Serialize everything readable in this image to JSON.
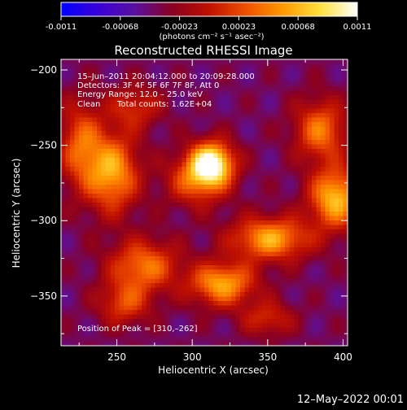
{
  "colorbar": {
    "tick_labels": [
      "-0.0011",
      "-0.00068",
      "-0.00023",
      "0.00023",
      "0.00068",
      "0.0011"
    ],
    "units": "(photons cm⁻² s⁻¹ asec⁻²)",
    "stops": [
      "#0000ff",
      "#3a00d8",
      "#5a10a0",
      "#8a0020",
      "#c01000",
      "#f05000",
      "#ff9a00",
      "#ffe040",
      "#ffffff"
    ]
  },
  "annotations": {
    "line1": "15–Jun–2011 20:04:12.000 to 20:09:28.000",
    "line2": "Detectors: 3F 4F 5F 6F 7F 8F, Att 0",
    "line3": "Energy Range: 12.0 – 25.0 keV",
    "line4_a": "Clean",
    "line4_b": "Total counts: 1.62E+04",
    "peak": "Position of Peak = [310,–262]"
  },
  "footer": {
    "timestamp": "12–May–2022 00:01"
  },
  "chart_data": {
    "type": "heatmap",
    "title": "Reconstructed RHESSI Image",
    "xlabel": "Heliocentric X (arcsec)",
    "ylabel": "Heliocentric Y (arcsec)",
    "xlim": [
      213,
      403
    ],
    "ylim": [
      -383,
      -193
    ],
    "xticks": [
      250,
      300,
      350,
      400
    ],
    "xtick_labels": [
      "250",
      "300",
      "350",
      "400"
    ],
    "yticks": [
      -200,
      -250,
      -300,
      -350
    ],
    "ytick_labels": [
      "−200",
      "−250",
      "−300",
      "−350"
    ],
    "background_level": -0.0004,
    "peak_position": [
      310,
      -262
    ],
    "sources": [
      {
        "x": 313,
        "y": -262,
        "amp": 0.0014,
        "sx": 10,
        "sy": 10
      },
      {
        "x": 303,
        "y": -273,
        "amp": 0.0007,
        "sx": 14,
        "sy": 12
      },
      {
        "x": 247,
        "y": -268,
        "amp": 0.001,
        "sx": 12,
        "sy": 18
      },
      {
        "x": 226,
        "y": -250,
        "amp": 0.0007,
        "sx": 10,
        "sy": 20
      },
      {
        "x": 262,
        "y": -225,
        "amp": 0.0005,
        "sx": 12,
        "sy": 10
      },
      {
        "x": 395,
        "y": -285,
        "amp": 0.0011,
        "sx": 12,
        "sy": 14
      },
      {
        "x": 385,
        "y": -240,
        "amp": 0.0008,
        "sx": 12,
        "sy": 14
      },
      {
        "x": 352,
        "y": -312,
        "amp": 0.001,
        "sx": 18,
        "sy": 10
      },
      {
        "x": 320,
        "y": -342,
        "amp": 0.001,
        "sx": 15,
        "sy": 10
      },
      {
        "x": 268,
        "y": -330,
        "amp": 0.0008,
        "sx": 16,
        "sy": 12
      },
      {
        "x": 255,
        "y": -355,
        "amp": 0.0006,
        "sx": 12,
        "sy": 10
      },
      {
        "x": 350,
        "y": -365,
        "amp": 0.0005,
        "sx": 12,
        "sy": 8
      }
    ]
  }
}
